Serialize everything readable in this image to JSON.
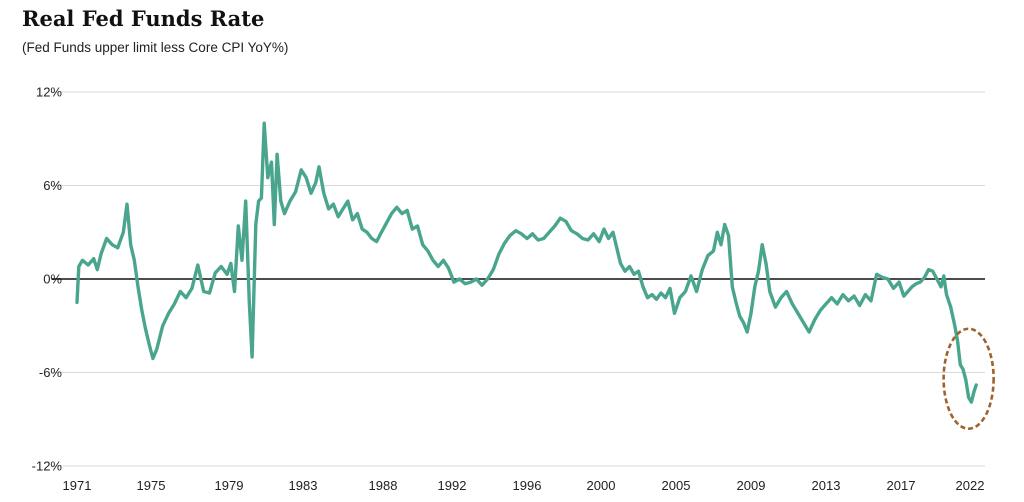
{
  "chart_data": {
    "type": "line",
    "title": "Real Fed Funds Rate",
    "subtitle": "(Fed Funds upper limit less Core CPI YoY%)",
    "xlabel": "",
    "ylabel": "",
    "x_ticks": [
      "1971",
      "1975",
      "1979",
      "1983",
      "1988",
      "1992",
      "1996",
      "2000",
      "2005",
      "2009",
      "2013",
      "2017",
      "2022"
    ],
    "y_ticks": [
      "12%",
      "6%",
      "0%",
      "-6%",
      "-12%"
    ],
    "ylim": [
      -12,
      12
    ],
    "xlim": [
      1971.0,
      2022.6
    ],
    "grid": true,
    "zero_line": true,
    "colors": {
      "line": "#4aa58e",
      "highlight": "#a0622d",
      "zero": "#111111",
      "grid": "#d9d9d9"
    },
    "highlight_annotation": "dashed circle around 2021-2022 low",
    "series": [
      {
        "values": [
          [
            1971.0,
            -1.5
          ],
          [
            1971.1,
            0.8
          ],
          [
            1971.3,
            1.2
          ],
          [
            1971.6,
            0.9
          ],
          [
            1971.9,
            1.3
          ],
          [
            1972.1,
            0.6
          ],
          [
            1972.3,
            1.6
          ],
          [
            1972.6,
            2.6
          ],
          [
            1972.9,
            2.2
          ],
          [
            1973.2,
            2.0
          ],
          [
            1973.5,
            3.0
          ],
          [
            1973.7,
            4.8
          ],
          [
            1973.9,
            2.2
          ],
          [
            1974.1,
            1.2
          ],
          [
            1974.3,
            -0.5
          ],
          [
            1974.5,
            -2.0
          ],
          [
            1974.7,
            -3.2
          ],
          [
            1974.9,
            -4.2
          ],
          [
            1975.1,
            -5.1
          ],
          [
            1975.3,
            -4.5
          ],
          [
            1975.6,
            -3.0
          ],
          [
            1975.9,
            -2.2
          ],
          [
            1976.2,
            -1.6
          ],
          [
            1976.5,
            -0.8
          ],
          [
            1976.8,
            -1.2
          ],
          [
            1977.1,
            -0.6
          ],
          [
            1977.4,
            0.9
          ],
          [
            1977.7,
            -0.8
          ],
          [
            1978.0,
            -0.9
          ],
          [
            1978.3,
            0.4
          ],
          [
            1978.6,
            0.8
          ],
          [
            1978.9,
            0.3
          ],
          [
            1979.1,
            1.0
          ],
          [
            1979.3,
            -0.8
          ],
          [
            1979.5,
            3.4
          ],
          [
            1979.7,
            1.2
          ],
          [
            1979.9,
            5.0
          ],
          [
            1980.1,
            -1.5
          ],
          [
            1980.25,
            -5.0
          ],
          [
            1980.45,
            3.5
          ],
          [
            1980.6,
            5.0
          ],
          [
            1980.75,
            5.2
          ],
          [
            1980.9,
            10.0
          ],
          [
            1981.1,
            6.5
          ],
          [
            1981.3,
            7.5
          ],
          [
            1981.45,
            3.5
          ],
          [
            1981.6,
            8.0
          ],
          [
            1981.8,
            5.0
          ],
          [
            1982.0,
            4.2
          ],
          [
            1982.3,
            5.0
          ],
          [
            1982.6,
            5.6
          ],
          [
            1982.9,
            7.0
          ],
          [
            1983.2,
            6.5
          ],
          [
            1983.5,
            5.5
          ],
          [
            1983.8,
            6.2
          ],
          [
            1984.0,
            7.2
          ],
          [
            1984.3,
            5.5
          ],
          [
            1984.6,
            4.5
          ],
          [
            1984.9,
            4.8
          ],
          [
            1985.2,
            4.0
          ],
          [
            1985.5,
            4.5
          ],
          [
            1985.8,
            5.0
          ],
          [
            1986.1,
            3.8
          ],
          [
            1986.4,
            4.2
          ],
          [
            1986.7,
            3.2
          ],
          [
            1987.0,
            3.0
          ],
          [
            1987.3,
            2.6
          ],
          [
            1987.6,
            2.4
          ],
          [
            1987.9,
            3.0
          ],
          [
            1988.2,
            3.6
          ],
          [
            1988.5,
            4.2
          ],
          [
            1988.8,
            4.6
          ],
          [
            1989.1,
            4.2
          ],
          [
            1989.4,
            4.4
          ],
          [
            1989.7,
            3.2
          ],
          [
            1990.0,
            3.4
          ],
          [
            1990.3,
            2.2
          ],
          [
            1990.6,
            1.8
          ],
          [
            1990.9,
            1.2
          ],
          [
            1991.2,
            0.8
          ],
          [
            1991.5,
            1.2
          ],
          [
            1991.8,
            0.7
          ],
          [
            1992.1,
            -0.2
          ],
          [
            1992.4,
            0.0
          ],
          [
            1992.7,
            -0.3
          ],
          [
            1993.0,
            -0.2
          ],
          [
            1993.3,
            0.0
          ],
          [
            1993.6,
            -0.4
          ],
          [
            1993.9,
            0.0
          ],
          [
            1994.2,
            0.6
          ],
          [
            1994.5,
            1.6
          ],
          [
            1994.8,
            2.3
          ],
          [
            1995.1,
            2.8
          ],
          [
            1995.4,
            3.1
          ],
          [
            1995.7,
            2.9
          ],
          [
            1996.0,
            2.6
          ],
          [
            1996.3,
            2.9
          ],
          [
            1996.6,
            2.5
          ],
          [
            1996.9,
            2.6
          ],
          [
            1997.2,
            3.0
          ],
          [
            1997.5,
            3.4
          ],
          [
            1997.8,
            3.9
          ],
          [
            1998.1,
            3.7
          ],
          [
            1998.4,
            3.1
          ],
          [
            1998.7,
            2.9
          ],
          [
            1999.0,
            2.6
          ],
          [
            1999.3,
            2.5
          ],
          [
            1999.6,
            2.9
          ],
          [
            1999.9,
            2.4
          ],
          [
            2000.2,
            3.2
          ],
          [
            2000.5,
            2.6
          ],
          [
            2000.8,
            3.0
          ],
          [
            2001.1,
            1.8
          ],
          [
            2001.3,
            1.0
          ],
          [
            2001.6,
            0.5
          ],
          [
            2001.9,
            0.8
          ],
          [
            2002.2,
            0.3
          ],
          [
            2002.5,
            0.5
          ],
          [
            2002.8,
            -0.5
          ],
          [
            2003.1,
            -1.2
          ],
          [
            2003.4,
            -1.0
          ],
          [
            2003.7,
            -1.3
          ],
          [
            2004.0,
            -0.9
          ],
          [
            2004.3,
            -1.2
          ],
          [
            2004.6,
            -0.6
          ],
          [
            2004.9,
            -2.2
          ],
          [
            2005.2,
            -1.2
          ],
          [
            2005.5,
            -0.8
          ],
          [
            2005.8,
            0.2
          ],
          [
            2006.1,
            -0.8
          ],
          [
            2006.4,
            0.6
          ],
          [
            2006.7,
            1.5
          ],
          [
            2007.0,
            1.8
          ],
          [
            2007.2,
            3.0
          ],
          [
            2007.4,
            2.2
          ],
          [
            2007.6,
            3.5
          ],
          [
            2007.8,
            2.8
          ],
          [
            2008.0,
            -0.5
          ],
          [
            2008.2,
            -1.5
          ],
          [
            2008.4,
            -2.4
          ],
          [
            2008.6,
            -2.8
          ],
          [
            2008.8,
            -3.4
          ],
          [
            2009.0,
            -2.2
          ],
          [
            2009.2,
            -0.5
          ],
          [
            2009.4,
            0.5
          ],
          [
            2009.6,
            2.2
          ],
          [
            2009.8,
            1.0
          ],
          [
            2010.0,
            -0.8
          ],
          [
            2010.3,
            -1.8
          ],
          [
            2010.6,
            -1.2
          ],
          [
            2010.9,
            -0.8
          ],
          [
            2011.2,
            -1.6
          ],
          [
            2011.5,
            -2.2
          ],
          [
            2011.8,
            -2.8
          ],
          [
            2012.1,
            -3.4
          ],
          [
            2012.4,
            -2.6
          ],
          [
            2012.7,
            -2.0
          ],
          [
            2013.0,
            -1.6
          ],
          [
            2013.3,
            -1.2
          ],
          [
            2013.6,
            -1.6
          ],
          [
            2013.9,
            -1.0
          ],
          [
            2014.2,
            -1.4
          ],
          [
            2014.5,
            -1.1
          ],
          [
            2014.8,
            -1.7
          ],
          [
            2015.1,
            -1.0
          ],
          [
            2015.4,
            -1.4
          ],
          [
            2015.7,
            0.3
          ],
          [
            2016.0,
            0.1
          ],
          [
            2016.3,
            0.0
          ],
          [
            2016.6,
            -0.6
          ],
          [
            2016.9,
            -0.2
          ],
          [
            2017.2,
            -1.1
          ],
          [
            2017.5,
            -0.8
          ],
          [
            2017.8,
            -0.5
          ],
          [
            2018.1,
            -0.3
          ],
          [
            2018.4,
            -0.2
          ],
          [
            2018.7,
            0.1
          ],
          [
            2019.0,
            0.6
          ],
          [
            2019.3,
            0.5
          ],
          [
            2019.6,
            0.0
          ],
          [
            2019.9,
            -0.5
          ],
          [
            2020.1,
            0.2
          ],
          [
            2020.3,
            -1.0
          ],
          [
            2020.6,
            -1.8
          ],
          [
            2020.9,
            -3.0
          ],
          [
            2021.1,
            -4.0
          ],
          [
            2021.3,
            -5.5
          ],
          [
            2021.5,
            -5.8
          ],
          [
            2021.7,
            -6.5
          ],
          [
            2021.9,
            -7.6
          ],
          [
            2022.1,
            -7.9
          ],
          [
            2022.3,
            -7.2
          ],
          [
            2022.45,
            -6.8
          ]
        ]
      }
    ]
  }
}
